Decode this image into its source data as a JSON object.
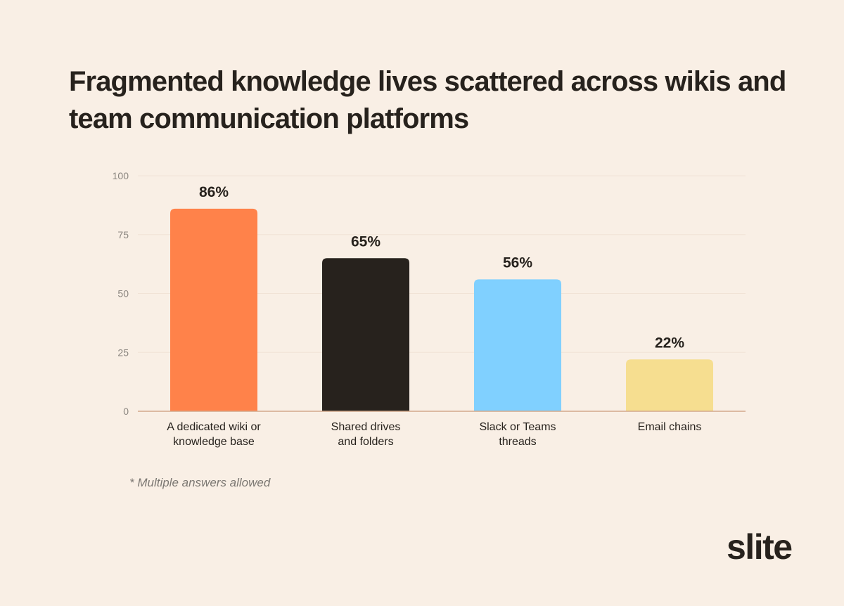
{
  "chart_data": {
    "type": "bar",
    "title": "Fragmented knowledge lives scattered across wikis and team communication platforms",
    "categories": [
      [
        "A dedicated wiki or",
        "knowledge base"
      ],
      [
        "Shared drives",
        "and folders"
      ],
      [
        "Slack or Teams",
        "threads"
      ],
      [
        "Email chains"
      ]
    ],
    "values": [
      86,
      65,
      56,
      22
    ],
    "data_labels": [
      "86%",
      "65%",
      "56%",
      "22%"
    ],
    "colors": [
      "#ff824a",
      "#27221d",
      "#80d0ff",
      "#f6de90"
    ],
    "yticks": [
      0,
      25,
      50,
      75,
      100
    ],
    "ylim": [
      0,
      100
    ],
    "grid": true,
    "footnote": "* Multiple answers allowed"
  },
  "brand": {
    "logo_text": "slite"
  }
}
